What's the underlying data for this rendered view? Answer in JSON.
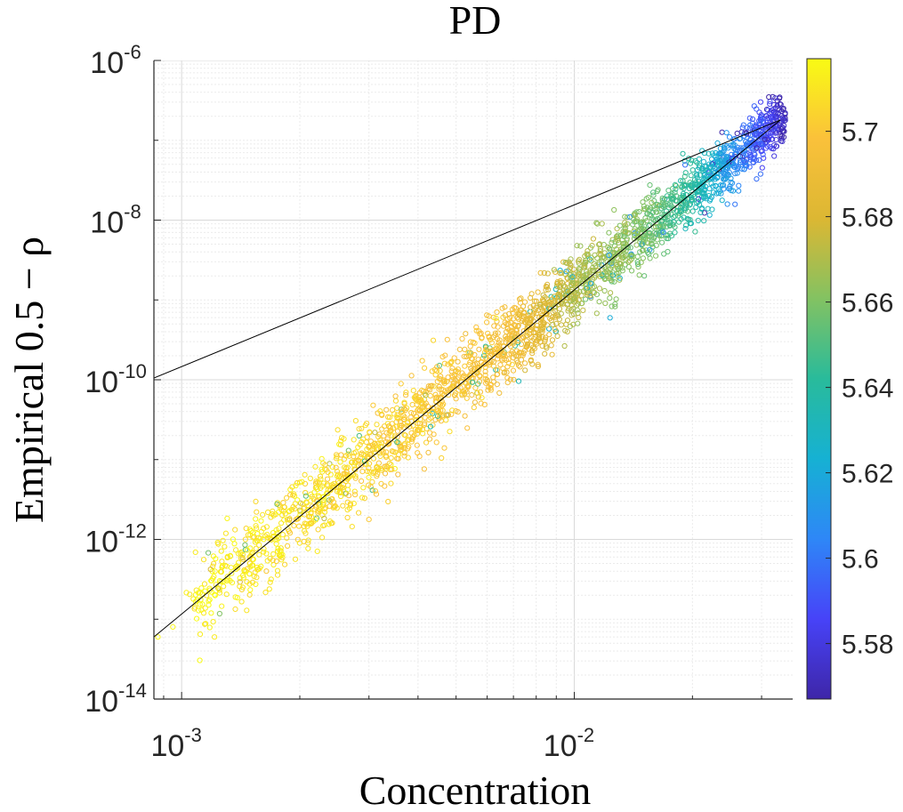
{
  "chart_data": {
    "type": "scatter",
    "title": "PD",
    "xlabel": "Concentration",
    "ylabel": "Empirical 0.5 − ρ",
    "x_scale": "log",
    "y_scale": "log",
    "xlim": [
      0.00085,
      0.036
    ],
    "ylim": [
      1e-14,
      1e-06
    ],
    "x_ticks": [
      {
        "value": 0.001,
        "base": "10",
        "exp": "-3"
      },
      {
        "value": 0.01,
        "base": "10",
        "exp": "-2"
      }
    ],
    "y_ticks": [
      {
        "value": 1e-14,
        "base": "10",
        "exp": "-14"
      },
      {
        "value": 1e-12,
        "base": "10",
        "exp": "-12"
      },
      {
        "value": 1e-10,
        "base": "10",
        "exp": "-10"
      },
      {
        "value": 1e-08,
        "base": "10",
        "exp": "-8"
      },
      {
        "value": 1e-06,
        "base": "10",
        "exp": "-6"
      }
    ],
    "grid": true,
    "minor_grid": true,
    "colorbar": {
      "range": [
        5.567,
        5.717
      ],
      "ticks": [
        "5.58",
        "5.6",
        "5.62",
        "5.64",
        "5.66",
        "5.68",
        "5.7"
      ],
      "tick_values": [
        5.58,
        5.6,
        5.62,
        5.64,
        5.66,
        5.68,
        5.7
      ],
      "colormap": [
        "#3e26a8",
        "#4743f8",
        "#2e87f7",
        "#16b1d3",
        "#29bb9b",
        "#83c262",
        "#dcb733",
        "#fac13a",
        "#f9fb14"
      ]
    },
    "lines": [
      {
        "x": [
          0.00085,
          0.0335
        ],
        "y": [
          1.05e-10,
          1.8e-07
        ],
        "color": "#000000"
      },
      {
        "x": [
          0.00085,
          0.0335
        ],
        "y": [
          6e-14,
          1.8e-07
        ],
        "color": "#000000"
      }
    ],
    "scatter_trend": {
      "x_range": [
        0.00085,
        0.0345
      ],
      "y_formula_anchor": {
        "x": [
          0.00085,
          0.0335
        ],
        "y": [
          6e-14,
          1.8e-07
        ]
      },
      "color_by_x": [
        {
          "x": 0.00085,
          "c": 5.717
        },
        {
          "x": 0.0045,
          "c": 5.7
        },
        {
          "x": 0.007,
          "c": 5.694
        },
        {
          "x": 0.01,
          "c": 5.67
        },
        {
          "x": 0.015,
          "c": 5.66
        },
        {
          "x": 0.02,
          "c": 5.64
        },
        {
          "x": 0.025,
          "c": 5.61
        },
        {
          "x": 0.03,
          "c": 5.59
        },
        {
          "x": 0.0345,
          "c": 5.57
        }
      ],
      "marker": "open-circle"
    }
  }
}
